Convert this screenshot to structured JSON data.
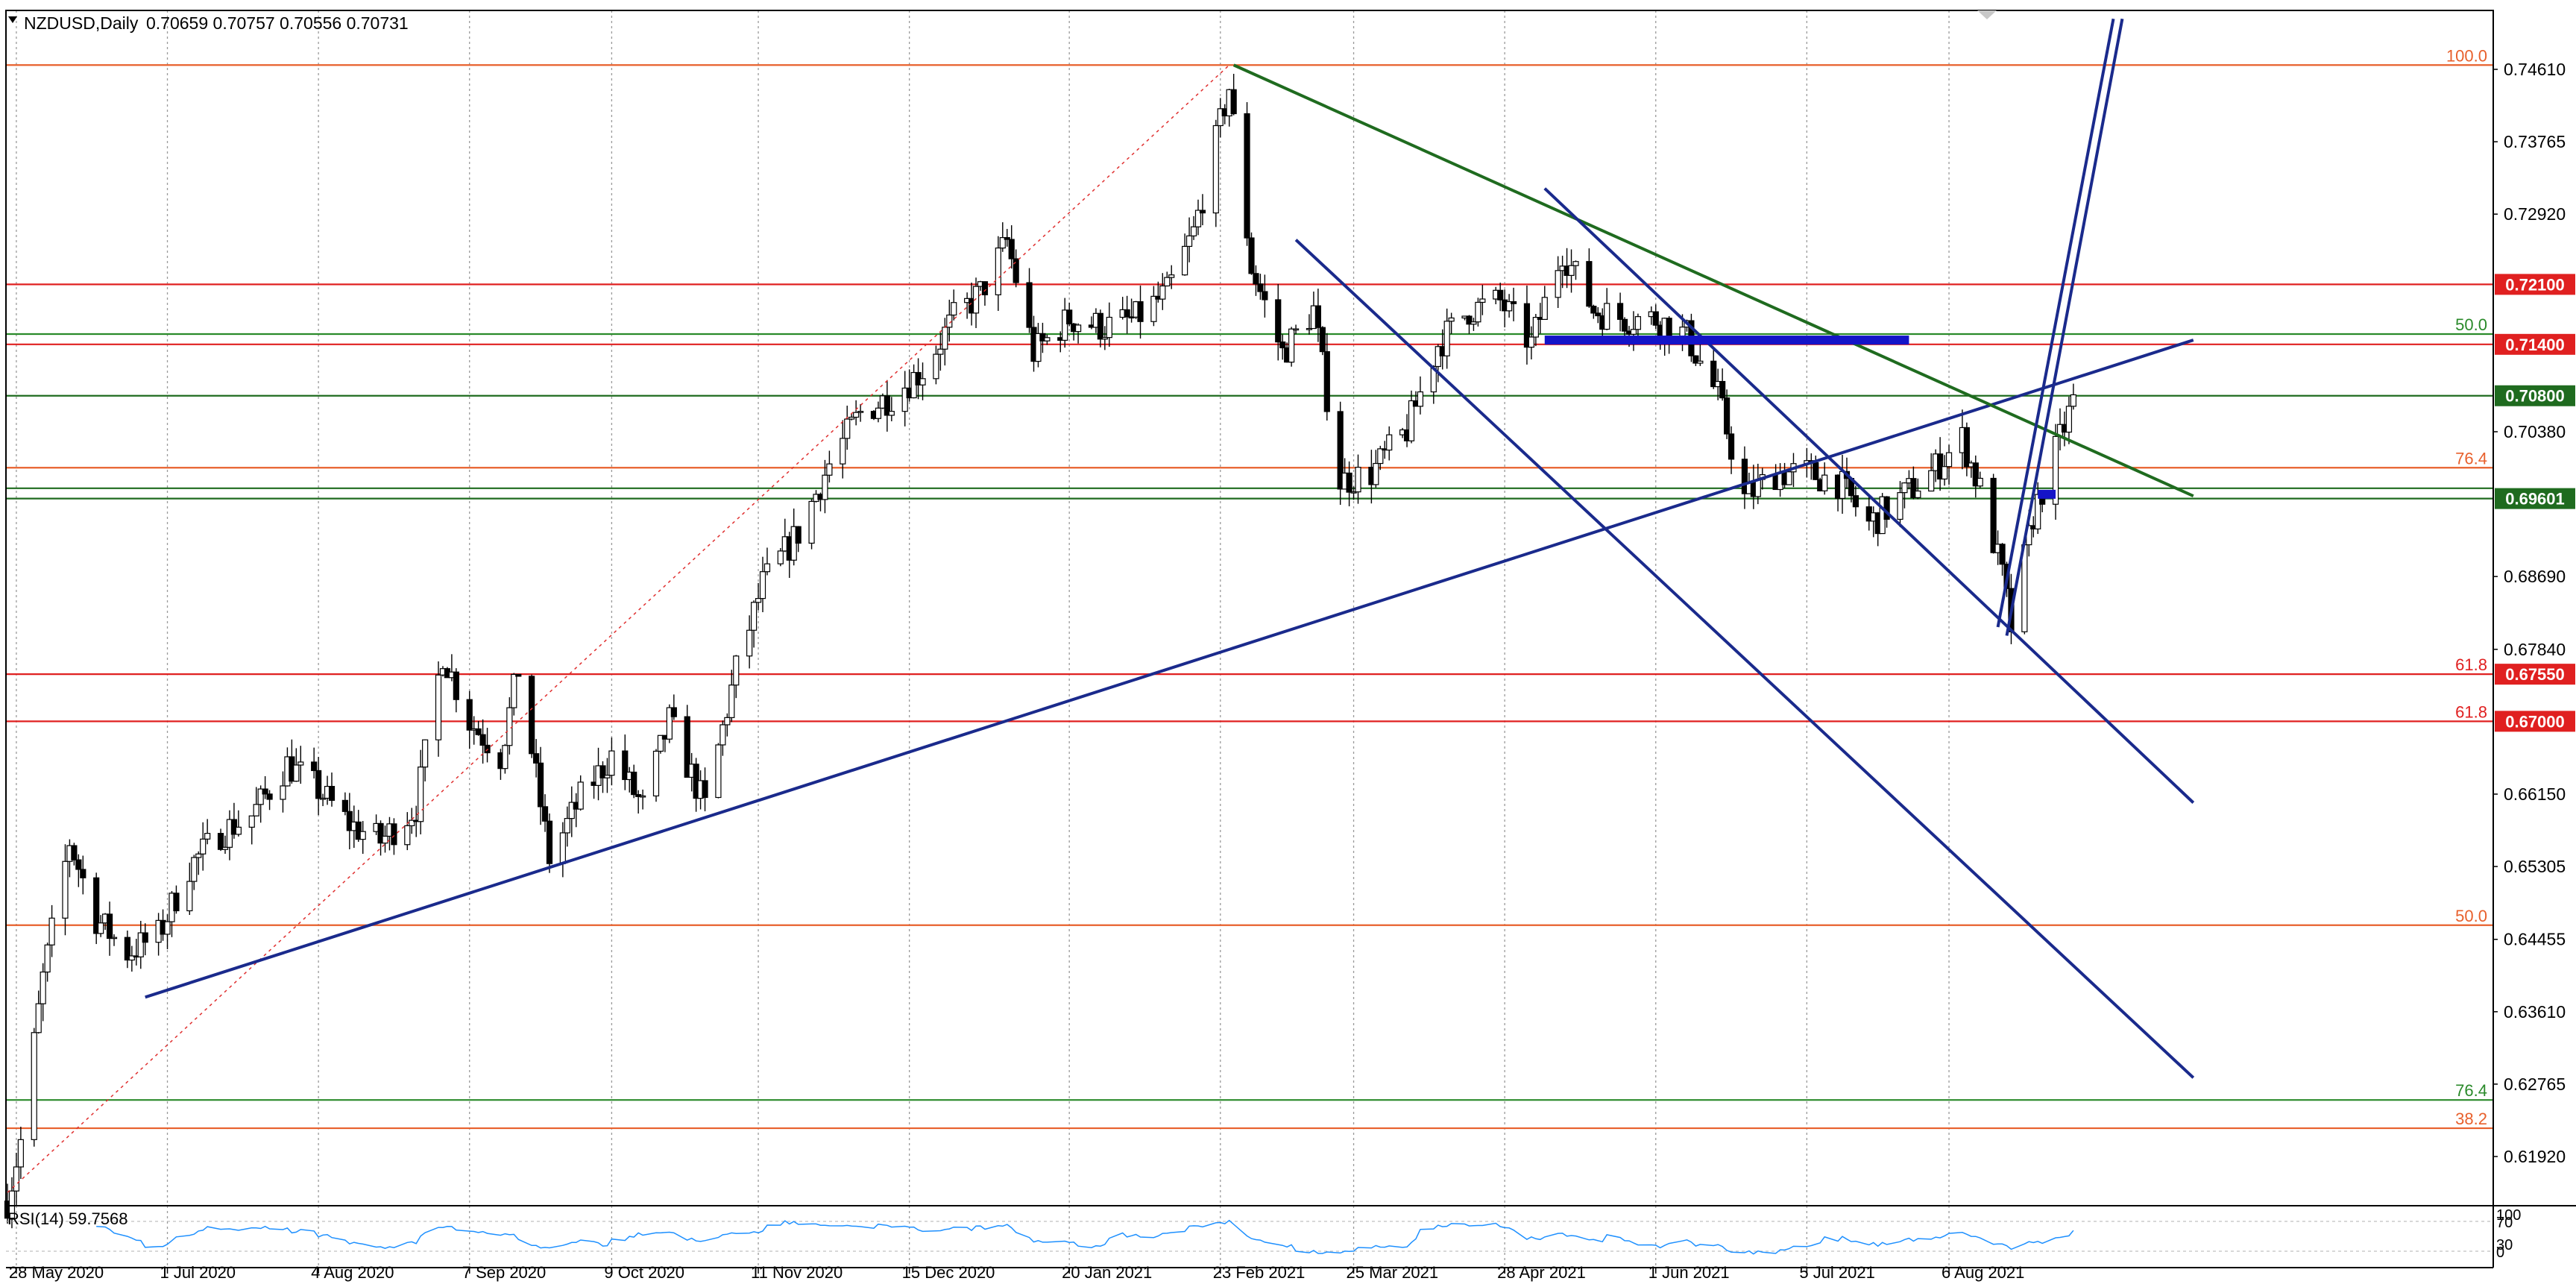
{
  "header": {
    "symbol": "NZDUSD,Daily",
    "ohlc": "0.70659 0.70757 0.70556 0.70731",
    "menu_icon": "triangle-down-icon"
  },
  "indicator": {
    "label": "RSI(14) 59.7568",
    "scale_labels": [
      "100",
      "70",
      "30",
      "0"
    ]
  },
  "chart_data": {
    "type": "candlestick",
    "symbol": "NZDUSD",
    "timeframe": "Daily",
    "ylim": [
      0.614,
      0.752
    ],
    "y_ticks": [
      "0.74610",
      "0.73765",
      "0.72920",
      "0.72100",
      "0.71400",
      "0.70800",
      "0.70380",
      "0.69601",
      "0.68690",
      "0.67840",
      "0.67550",
      "0.67000",
      "0.66150",
      "0.65305",
      "0.64455",
      "0.63610",
      "0.62765",
      "0.61920"
    ],
    "x_ticks": [
      "28 May 2020",
      "1 Jul 2020",
      "4 Aug 2020",
      "7 Sep 2020",
      "9 Oct 2020",
      "11 Nov 2020",
      "15 Dec 2020",
      "20 Jan 2021",
      "23 Feb 2021",
      "25 Mar 2021",
      "28 Apr 2021",
      "1 Jun 2021",
      "5 Jul 2021",
      "6 Aug 2021"
    ],
    "x_tick_dates": [
      "2020-05-28",
      "2020-07-01",
      "2020-08-04",
      "2020-09-07",
      "2020-10-09",
      "2020-11-11",
      "2020-12-15",
      "2021-01-20",
      "2021-02-23",
      "2021-03-25",
      "2021-04-28",
      "2021-06-01",
      "2021-07-05",
      "2021-08-06"
    ],
    "date_range": [
      "2020-05-26",
      "2021-09-03"
    ],
    "price_series": [
      [
        "2020-05-26",
        0.614
      ],
      [
        "2020-05-29",
        0.621
      ],
      [
        "2020-06-03",
        0.64
      ],
      [
        "2020-06-09",
        0.656
      ],
      [
        "2020-06-15",
        0.647
      ],
      [
        "2020-06-22",
        0.643
      ],
      [
        "2020-06-29",
        0.645
      ],
      [
        "2020-07-06",
        0.653
      ],
      [
        "2020-07-13",
        0.657
      ],
      [
        "2020-07-20",
        0.659
      ],
      [
        "2020-07-28",
        0.665
      ],
      [
        "2020-08-04",
        0.662
      ],
      [
        "2020-08-11",
        0.658
      ],
      [
        "2020-08-18",
        0.656
      ],
      [
        "2020-08-26",
        0.66
      ],
      [
        "2020-09-01",
        0.678
      ],
      [
        "2020-09-07",
        0.67
      ],
      [
        "2020-09-14",
        0.666
      ],
      [
        "2020-09-18",
        0.676
      ],
      [
        "2020-09-25",
        0.654
      ],
      [
        "2020-10-02",
        0.661
      ],
      [
        "2020-10-09",
        0.666
      ],
      [
        "2020-10-16",
        0.66
      ],
      [
        "2020-10-22",
        0.67
      ],
      [
        "2020-10-30",
        0.66
      ],
      [
        "2020-11-06",
        0.676
      ],
      [
        "2020-11-12",
        0.686
      ],
      [
        "2020-11-20",
        0.692
      ],
      [
        "2020-11-27",
        0.7
      ],
      [
        "2020-12-04",
        0.706
      ],
      [
        "2020-12-11",
        0.708
      ],
      [
        "2020-12-18",
        0.711
      ],
      [
        "2020-12-25",
        0.717
      ],
      [
        "2020-12-31",
        0.72
      ],
      [
        "2021-01-06",
        0.726
      ],
      [
        "2021-01-12",
        0.713
      ],
      [
        "2021-01-20",
        0.717
      ],
      [
        "2021-01-28",
        0.716
      ],
      [
        "2021-02-04",
        0.717
      ],
      [
        "2021-02-11",
        0.72
      ],
      [
        "2021-02-17",
        0.727
      ],
      [
        "2021-02-25",
        0.744
      ],
      [
        "2021-03-02",
        0.723
      ],
      [
        "2021-03-09",
        0.713
      ],
      [
        "2021-03-16",
        0.718
      ],
      [
        "2021-03-22",
        0.698
      ],
      [
        "2021-03-29",
        0.699
      ],
      [
        "2021-04-06",
        0.704
      ],
      [
        "2021-04-13",
        0.714
      ],
      [
        "2021-04-20",
        0.718
      ],
      [
        "2021-04-27",
        0.719
      ],
      [
        "2021-05-04",
        0.714
      ],
      [
        "2021-05-11",
        0.725
      ],
      [
        "2021-05-18",
        0.718
      ],
      [
        "2021-05-25",
        0.717
      ],
      [
        "2021-06-01",
        0.717
      ],
      [
        "2021-06-08",
        0.715
      ],
      [
        "2021-06-15",
        0.708
      ],
      [
        "2021-06-21",
        0.696
      ],
      [
        "2021-06-28",
        0.699
      ],
      [
        "2021-07-05",
        0.699
      ],
      [
        "2021-07-12",
        0.698
      ],
      [
        "2021-07-19",
        0.693
      ],
      [
        "2021-07-26",
        0.696
      ],
      [
        "2021-08-02",
        0.699
      ],
      [
        "2021-08-09",
        0.703
      ],
      [
        "2021-08-13",
        0.697
      ],
      [
        "2021-08-18",
        0.687
      ],
      [
        "2021-08-20",
        0.681
      ],
      [
        "2021-08-25",
        0.694
      ],
      [
        "2021-08-31",
        0.703
      ],
      [
        "2021-09-03",
        0.7073
      ]
    ],
    "horizontal_levels": [
      {
        "price": 0.7466,
        "color": "#e8602c",
        "label": "100.0",
        "tag": "",
        "tag_bg": ""
      },
      {
        "price": 0.721,
        "color": "#e02020",
        "label": "",
        "tag": "0.72100",
        "tag_bg": "#e02020"
      },
      {
        "price": 0.7152,
        "color": "#2a8a2a",
        "label": "50.0",
        "tag": "",
        "tag_bg": ""
      },
      {
        "price": 0.714,
        "color": "#e02020",
        "label": "",
        "tag": "0.71400",
        "tag_bg": "#e02020"
      },
      {
        "price": 0.708,
        "color": "#1f6b1f",
        "label": "",
        "tag": "0.70800",
        "tag_bg": "#1f6b1f"
      },
      {
        "price": 0.6996,
        "color": "#e8602c",
        "label": "76.4",
        "tag": "",
        "tag_bg": ""
      },
      {
        "price": 0.6972,
        "color": "#1f6b1f",
        "label": "",
        "tag": "",
        "tag_bg": ""
      },
      {
        "price": 0.696,
        "color": "#1f6b1f",
        "label": "",
        "tag": "0.69601",
        "tag_bg": "#1f6b1f"
      },
      {
        "price": 0.6755,
        "color": "#e02020",
        "label": "61.8",
        "tag": "0.67550",
        "tag_bg": "#e02020"
      },
      {
        "price": 0.67,
        "color": "#e02020",
        "label": "61.8",
        "tag": "0.67000",
        "tag_bg": "#e02020"
      },
      {
        "price": 0.6462,
        "color": "#e8602c",
        "label": "50.0",
        "tag": "",
        "tag_bg": ""
      },
      {
        "price": 0.6258,
        "color": "#2a8a2a",
        "label": "76.4",
        "tag": "",
        "tag_bg": ""
      },
      {
        "price": 0.6225,
        "color": "#e8602c",
        "label": "38.2",
        "tag": "",
        "tag_bg": ""
      }
    ],
    "trendlines": [
      {
        "color": "#1a2a8c",
        "from": [
          "2020-06-26",
          0.6378
        ],
        "to": [
          "2021-09-30",
          0.7145
        ]
      },
      {
        "color": "#1f6b1f",
        "from": [
          "2021-02-26",
          0.7466
        ],
        "to": [
          "2021-09-30",
          0.6963
        ]
      },
      {
        "color": "#1a2a8c",
        "from": [
          "2021-03-12",
          0.7262
        ],
        "to": [
          "2021-09-30",
          0.6284
        ]
      },
      {
        "color": "#1a2a8c",
        "from": [
          "2021-05-07",
          0.7322
        ],
        "to": [
          "2021-09-30",
          0.6605
        ]
      },
      {
        "color": "#1a2a8c",
        "from": [
          "2021-08-17",
          0.681
        ],
        "to": [
          "2021-09-12",
          0.752
        ]
      },
      {
        "color": "#1a2a8c",
        "from": [
          "2021-08-19",
          0.68
        ],
        "to": [
          "2021-09-14",
          0.752
        ]
      }
    ],
    "fib_diagonal": {
      "color": "#e03030",
      "from": [
        "2020-05-26",
        0.615
      ],
      "to": [
        "2021-02-25",
        0.7466
      ]
    },
    "zones": [
      {
        "color": "#1414c8",
        "from": "2021-05-07",
        "to": "2021-07-28",
        "price": 0.7145
      },
      {
        "color": "#1414c8",
        "from": "2021-08-26",
        "to": "2021-08-30",
        "price": 0.6965
      }
    ],
    "rsi_value": 59.7568
  }
}
